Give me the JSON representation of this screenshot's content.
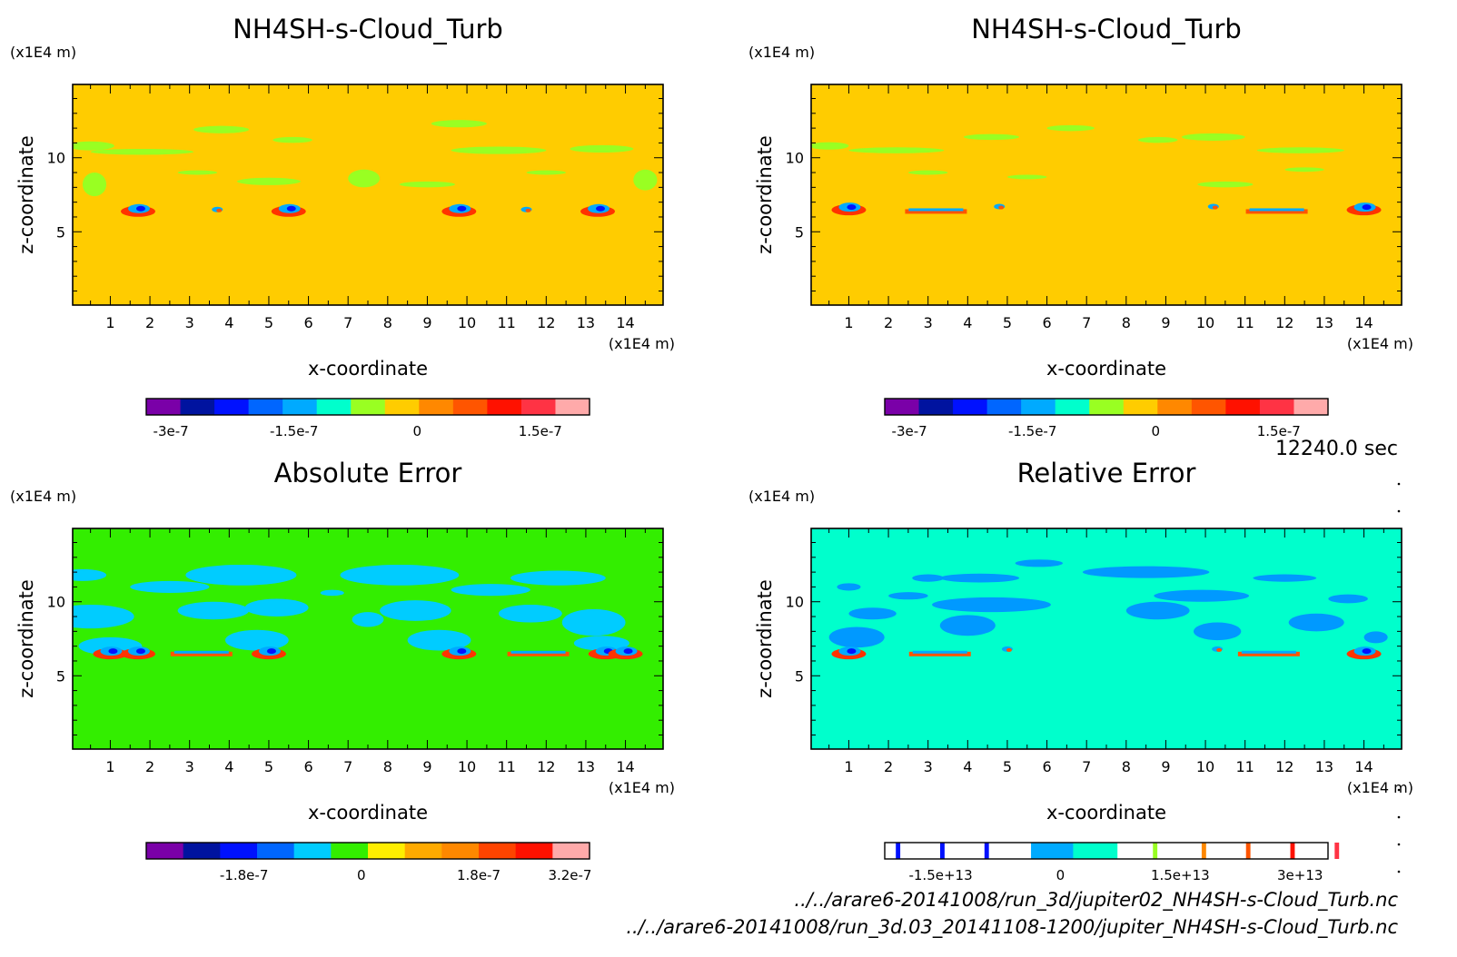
{
  "time_label": "12240.0 sec",
  "files": [
    "../../arare6-20141008/run_3d/jupiter02_NH4SH-s-Cloud_Turb.nc",
    "../../arare6-20141008/run_3d.03_20141108-1200/jupiter_NH4SH-s-Cloud_Turb.nc"
  ],
  "chart_data": [
    {
      "type": "heatmap",
      "title": "NH4SH-s-Cloud_Turb",
      "xlabel": "x-coordinate",
      "ylabel": "z-coordinate",
      "xunit": "(x1E4 m)",
      "yunit": "(x1E4 m)",
      "xlim": [
        0.05,
        14.95
      ],
      "ylim": [
        0.05,
        14.95
      ],
      "xticks": [
        "1",
        "2",
        "3",
        "4",
        "5",
        "6",
        "7",
        "8",
        "9",
        "10",
        "11",
        "12",
        "13",
        "14"
      ],
      "yticks": [
        "5",
        "10"
      ],
      "background_color": "#ffcc00",
      "colorbar": {
        "colors": [
          "#7a00a8",
          "#00139f",
          "#0011ff",
          "#0066ff",
          "#00aaff",
          "#00ffcc",
          "#99ff22",
          "#ffcc00",
          "#ff8800",
          "#ff5500",
          "#ff1100",
          "#ff3344",
          "#ffaaaa"
        ],
        "labels": [
          "-3e-7",
          "-1.5e-7",
          "0",
          "1.5e-7"
        ],
        "label_values": [
          -3e-07,
          -1.5e-07,
          0,
          1.5e-07
        ],
        "range": [
          -3.3e-07,
          2.1e-07
        ]
      },
      "features": [
        {
          "x": 1.7,
          "z": 6.5,
          "kind": "vortex"
        },
        {
          "x": 3.7,
          "z": 6.5,
          "kind": "small"
        },
        {
          "x": 5.5,
          "z": 6.5,
          "kind": "vortex"
        },
        {
          "x": 9.8,
          "z": 6.5,
          "kind": "vortex"
        },
        {
          "x": 11.5,
          "z": 6.5,
          "kind": "small"
        },
        {
          "x": 13.3,
          "z": 6.5,
          "kind": "vortex"
        }
      ],
      "patches": [
        {
          "x": 0.5,
          "z": 10.8,
          "w": 1.2,
          "h": 0.6
        },
        {
          "x": 3.8,
          "z": 11.9,
          "w": 1.4,
          "h": 0.5
        },
        {
          "x": 5.6,
          "z": 11.2,
          "w": 1.0,
          "h": 0.4
        },
        {
          "x": 1.8,
          "z": 10.4,
          "w": 2.6,
          "h": 0.4
        },
        {
          "x": 7.4,
          "z": 8.6,
          "w": 0.8,
          "h": 1.2
        },
        {
          "x": 9.8,
          "z": 12.3,
          "w": 1.4,
          "h": 0.5
        },
        {
          "x": 10.8,
          "z": 10.5,
          "w": 2.4,
          "h": 0.5
        },
        {
          "x": 13.4,
          "z": 10.6,
          "w": 1.6,
          "h": 0.5
        },
        {
          "x": 0.6,
          "z": 8.2,
          "w": 0.6,
          "h": 1.6
        },
        {
          "x": 14.5,
          "z": 8.5,
          "w": 0.6,
          "h": 1.4
        },
        {
          "x": 5.0,
          "z": 8.4,
          "w": 1.6,
          "h": 0.5
        },
        {
          "x": 9.0,
          "z": 8.2,
          "w": 1.4,
          "h": 0.4
        },
        {
          "x": 3.2,
          "z": 9.0,
          "w": 1.0,
          "h": 0.3
        },
        {
          "x": 12.0,
          "z": 9.0,
          "w": 1.0,
          "h": 0.3
        }
      ],
      "patch_color": "#99ff22"
    },
    {
      "type": "heatmap",
      "title": "NH4SH-s-Cloud_Turb",
      "xlabel": "x-coordinate",
      "ylabel": "z-coordinate",
      "xunit": "(x1E4 m)",
      "yunit": "(x1E4 m)",
      "xlim": [
        0.05,
        14.95
      ],
      "ylim": [
        0.05,
        14.95
      ],
      "xticks": [
        "1",
        "2",
        "3",
        "4",
        "5",
        "6",
        "7",
        "8",
        "9",
        "10",
        "11",
        "12",
        "13",
        "14"
      ],
      "yticks": [
        "5",
        "10"
      ],
      "background_color": "#ffcc00",
      "colorbar": {
        "colors": [
          "#7a00a8",
          "#00139f",
          "#0011ff",
          "#0066ff",
          "#00aaff",
          "#00ffcc",
          "#99ff22",
          "#ffcc00",
          "#ff8800",
          "#ff5500",
          "#ff1100",
          "#ff3344",
          "#ffaaaa"
        ],
        "labels": [
          "-3e-7",
          "-1.5e-7",
          "0",
          "1.5e-7"
        ],
        "label_values": [
          -3e-07,
          -1.5e-07,
          0,
          1.5e-07
        ],
        "range": [
          -3.3e-07,
          2.1e-07
        ]
      },
      "features": [
        {
          "x": 1.0,
          "z": 6.6,
          "kind": "vortex"
        },
        {
          "x": 3.2,
          "z": 6.4,
          "kind": "band"
        },
        {
          "x": 4.8,
          "z": 6.7,
          "kind": "small"
        },
        {
          "x": 10.2,
          "z": 6.7,
          "kind": "small"
        },
        {
          "x": 11.8,
          "z": 6.4,
          "kind": "band"
        },
        {
          "x": 14.0,
          "z": 6.6,
          "kind": "vortex"
        }
      ],
      "patches": [
        {
          "x": 0.5,
          "z": 10.8,
          "w": 1.0,
          "h": 0.5
        },
        {
          "x": 2.2,
          "z": 10.5,
          "w": 2.4,
          "h": 0.4
        },
        {
          "x": 4.6,
          "z": 11.4,
          "w": 1.4,
          "h": 0.4
        },
        {
          "x": 6.6,
          "z": 12.0,
          "w": 1.2,
          "h": 0.4
        },
        {
          "x": 8.8,
          "z": 11.2,
          "w": 1.0,
          "h": 0.4
        },
        {
          "x": 10.2,
          "z": 11.4,
          "w": 1.6,
          "h": 0.5
        },
        {
          "x": 12.4,
          "z": 10.5,
          "w": 2.2,
          "h": 0.4
        },
        {
          "x": 5.5,
          "z": 8.7,
          "w": 1.0,
          "h": 0.3
        },
        {
          "x": 10.5,
          "z": 8.2,
          "w": 1.4,
          "h": 0.4
        },
        {
          "x": 3.0,
          "z": 9.0,
          "w": 1.0,
          "h": 0.3
        },
        {
          "x": 12.5,
          "z": 9.2,
          "w": 1.0,
          "h": 0.3
        }
      ],
      "patch_color": "#99ff22"
    },
    {
      "type": "heatmap",
      "title": "Absolute Error",
      "xlabel": "x-coordinate",
      "ylabel": "z-coordinate",
      "xunit": "(x1E4 m)",
      "yunit": "(x1E4 m)",
      "xlim": [
        0.05,
        14.95
      ],
      "ylim": [
        0.05,
        14.95
      ],
      "xticks": [
        "1",
        "2",
        "3",
        "4",
        "5",
        "6",
        "7",
        "8",
        "9",
        "10",
        "11",
        "12",
        "13",
        "14"
      ],
      "yticks": [
        "5",
        "10"
      ],
      "background_color": "#33ee00",
      "colorbar": {
        "colors": [
          "#7a00a8",
          "#00139f",
          "#0011ff",
          "#0066ff",
          "#00ccff",
          "#33ee00",
          "#ffee00",
          "#ffaa00",
          "#ff8800",
          "#ff4400",
          "#ff1100",
          "#ffaaaa"
        ],
        "labels": [
          "-1.8e-7",
          "0",
          "1.8e-7",
          "3.2e-7"
        ],
        "label_values": [
          -1.8e-07,
          0,
          1.8e-07,
          3.2e-07
        ],
        "range": [
          -3.3e-07,
          3.5e-07
        ]
      },
      "features": [
        {
          "x": 1.0,
          "z": 6.6,
          "kind": "vortex"
        },
        {
          "x": 1.7,
          "z": 6.6,
          "kind": "vortex"
        },
        {
          "x": 3.3,
          "z": 6.5,
          "kind": "band"
        },
        {
          "x": 5.0,
          "z": 6.6,
          "kind": "vortex"
        },
        {
          "x": 9.8,
          "z": 6.6,
          "kind": "vortex"
        },
        {
          "x": 11.8,
          "z": 6.5,
          "kind": "band"
        },
        {
          "x": 13.5,
          "z": 6.6,
          "kind": "vortex"
        },
        {
          "x": 14.0,
          "z": 6.6,
          "kind": "vortex"
        }
      ],
      "patches": [
        {
          "x": 0.3,
          "z": 11.8,
          "w": 1.2,
          "h": 0.8
        },
        {
          "x": 0.5,
          "z": 9.0,
          "w": 2.2,
          "h": 1.6
        },
        {
          "x": 1.0,
          "z": 7.0,
          "w": 1.6,
          "h": 1.2
        },
        {
          "x": 2.5,
          "z": 11.0,
          "w": 2.0,
          "h": 0.8
        },
        {
          "x": 3.6,
          "z": 9.4,
          "w": 1.8,
          "h": 1.2
        },
        {
          "x": 4.3,
          "z": 11.8,
          "w": 2.8,
          "h": 1.4
        },
        {
          "x": 4.7,
          "z": 7.4,
          "w": 1.6,
          "h": 1.4
        },
        {
          "x": 5.2,
          "z": 9.6,
          "w": 1.6,
          "h": 1.2
        },
        {
          "x": 7.5,
          "z": 8.8,
          "w": 0.8,
          "h": 1.0
        },
        {
          "x": 8.3,
          "z": 11.8,
          "w": 3.0,
          "h": 1.4
        },
        {
          "x": 8.7,
          "z": 9.4,
          "w": 1.8,
          "h": 1.4
        },
        {
          "x": 9.3,
          "z": 7.4,
          "w": 1.6,
          "h": 1.4
        },
        {
          "x": 10.6,
          "z": 10.8,
          "w": 2.0,
          "h": 0.8
        },
        {
          "x": 11.6,
          "z": 9.2,
          "w": 1.6,
          "h": 1.2
        },
        {
          "x": 12.3,
          "z": 11.6,
          "w": 2.4,
          "h": 1.0
        },
        {
          "x": 13.2,
          "z": 8.6,
          "w": 1.6,
          "h": 1.8
        },
        {
          "x": 13.4,
          "z": 7.2,
          "w": 1.4,
          "h": 1.0
        },
        {
          "x": 6.6,
          "z": 10.6,
          "w": 0.6,
          "h": 0.4
        }
      ],
      "patch_color": "#00ccff"
    },
    {
      "type": "heatmap",
      "title": "Relative Error",
      "xlabel": "x-coordinate",
      "ylabel": "z-coordinate",
      "xunit": "(x1E4 m)",
      "yunit": "(x1E4 m)",
      "xlim": [
        0.05,
        14.95
      ],
      "ylim": [
        0.05,
        14.95
      ],
      "xticks": [
        "1",
        "2",
        "3",
        "4",
        "5",
        "6",
        "7",
        "8",
        "9",
        "10",
        "11",
        "12",
        "13",
        "14"
      ],
      "yticks": [
        "5",
        "10"
      ],
      "background_color": "#00ffcc",
      "colorbar": {
        "colors": [
          "#ffffff",
          "#0011ff",
          "#ffffff",
          "#0011ff",
          "#ffffff",
          "#0011ff",
          "#ffffff",
          "#00aaff",
          "#00ffcc",
          "#ffffff",
          "#99ff22",
          "#ffffff",
          "#ff8800",
          "#ffffff",
          "#ff5500",
          "#ffffff",
          "#ff1100",
          "#ffffff",
          "#ff3344",
          "#ffffff"
        ],
        "widths": [
          0.025,
          0.01,
          0.09,
          0.01,
          0.09,
          0.01,
          0.095,
          0.095,
          0.1,
          0.08,
          0.01,
          0.1,
          0.01,
          0.09,
          0.01,
          0.09,
          0.01,
          0.09,
          0.01,
          0.035
        ],
        "labels": [
          "-1.5e+13",
          "0",
          "1.5e+13",
          "3e+13"
        ],
        "label_values": [
          -15000000000000.0,
          0,
          15000000000000.0,
          30000000000000.0
        ],
        "range": [
          -22000000000000.0,
          33500000000000.0
        ]
      },
      "features": [
        {
          "x": 1.0,
          "z": 6.6,
          "kind": "vortex"
        },
        {
          "x": 3.3,
          "z": 6.5,
          "kind": "band"
        },
        {
          "x": 5.0,
          "z": 6.8,
          "kind": "small"
        },
        {
          "x": 10.3,
          "z": 6.8,
          "kind": "small"
        },
        {
          "x": 11.6,
          "z": 6.5,
          "kind": "band"
        },
        {
          "x": 14.0,
          "z": 6.6,
          "kind": "vortex"
        }
      ],
      "patches": [
        {
          "x": 1.0,
          "z": 11.0,
          "w": 0.6,
          "h": 0.5
        },
        {
          "x": 1.2,
          "z": 7.6,
          "w": 1.4,
          "h": 1.4
        },
        {
          "x": 1.6,
          "z": 9.2,
          "w": 1.2,
          "h": 0.8
        },
        {
          "x": 2.5,
          "z": 10.4,
          "w": 1.0,
          "h": 0.5
        },
        {
          "x": 3.0,
          "z": 11.6,
          "w": 0.8,
          "h": 0.5
        },
        {
          "x": 4.0,
          "z": 8.4,
          "w": 1.4,
          "h": 1.4
        },
        {
          "x": 4.3,
          "z": 11.6,
          "w": 2.0,
          "h": 0.6
        },
        {
          "x": 4.6,
          "z": 9.8,
          "w": 3.0,
          "h": 1.0
        },
        {
          "x": 5.8,
          "z": 12.6,
          "w": 1.2,
          "h": 0.5
        },
        {
          "x": 8.5,
          "z": 12.0,
          "w": 3.2,
          "h": 0.8
        },
        {
          "x": 8.8,
          "z": 9.4,
          "w": 1.6,
          "h": 1.2
        },
        {
          "x": 9.9,
          "z": 10.4,
          "w": 2.4,
          "h": 0.8
        },
        {
          "x": 10.3,
          "z": 8.0,
          "w": 1.2,
          "h": 1.2
        },
        {
          "x": 12.0,
          "z": 11.6,
          "w": 1.6,
          "h": 0.5
        },
        {
          "x": 12.8,
          "z": 8.6,
          "w": 1.4,
          "h": 1.2
        },
        {
          "x": 13.6,
          "z": 10.2,
          "w": 1.0,
          "h": 0.6
        },
        {
          "x": 14.3,
          "z": 7.6,
          "w": 0.6,
          "h": 0.8
        }
      ],
      "patch_color": "#0099ff"
    }
  ]
}
